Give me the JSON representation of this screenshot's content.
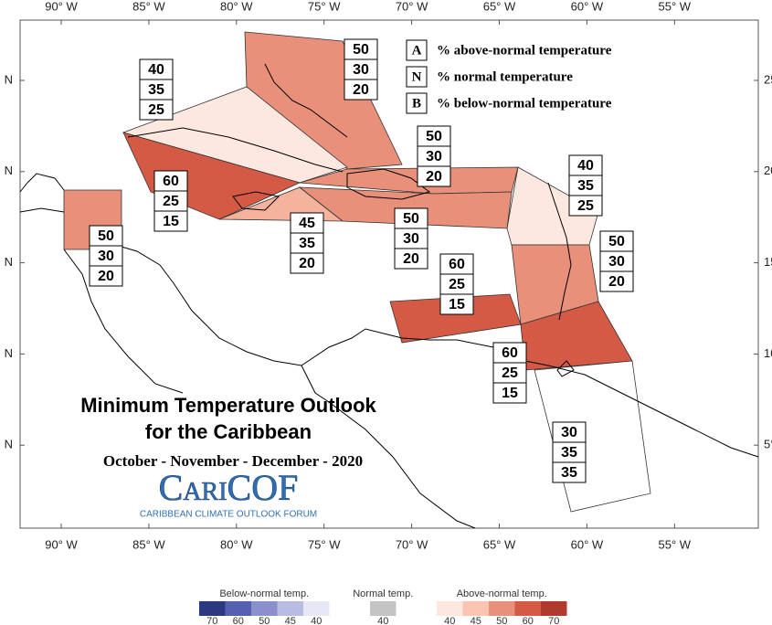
{
  "title": [
    "Minimum Temperature Outlook",
    "for the Caribbean"
  ],
  "subtitle": "October - November - December - 2020",
  "logo": {
    "name": "CariCOF",
    "tagline": "CARIBBEAN CLIMATE OUTLOOK FORUM"
  },
  "key": [
    {
      "letter": "A",
      "text": "% above-normal temperature"
    },
    {
      "letter": "N",
      "text": "% normal temperature"
    },
    {
      "letter": "B",
      "text": "% below-normal temperature"
    }
  ],
  "map": {
    "top_labels": [
      "90° W",
      "85° W",
      "80° W",
      "75° W",
      "70° W",
      "65° W",
      "60° W",
      "55° W"
    ],
    "bottom_labels": [
      "90° W",
      "85° W",
      "80° W",
      "75° W",
      "70° W",
      "65° W",
      "60° W",
      "55° W"
    ],
    "left_labels": [
      "N",
      "N",
      "N",
      "N",
      "N"
    ],
    "right_labels": [
      "25",
      "20",
      "15",
      "10",
      "5°"
    ],
    "regions": [
      {
        "color": "#e9907a",
        "values": [
          50,
          30,
          20
        ]
      },
      {
        "color": "#fde8e0",
        "values": [
          40,
          35,
          25
        ]
      },
      {
        "color": "#d45a45",
        "values": [
          60,
          25,
          15
        ]
      },
      {
        "color": "#f5b39e",
        "values": [
          45,
          35,
          20
        ]
      },
      {
        "color": "#e9907a",
        "values": [
          50,
          30,
          20
        ]
      },
      {
        "color": "#e9907a",
        "values": [
          50,
          30,
          20
        ]
      },
      {
        "color": "#e9907a",
        "values": [
          50,
          30,
          20
        ]
      },
      {
        "color": "#fde8e0",
        "values": [
          40,
          35,
          25
        ]
      },
      {
        "color": "#e9907a",
        "values": [
          50,
          30,
          20
        ]
      },
      {
        "color": "#d45a45",
        "values": [
          60,
          25,
          15
        ]
      },
      {
        "color": "#d45a45",
        "values": [
          60,
          25,
          15
        ]
      },
      {
        "color": "#ffffff",
        "values": [
          30,
          35,
          35
        ]
      }
    ]
  },
  "legend": [
    {
      "label": "Below-normal temp.",
      "colors": [
        "#2b3a80",
        "#5560b0",
        "#8a90cc",
        "#b8bce2",
        "#e6e8f5"
      ],
      "ticks": [
        70,
        60,
        50,
        45,
        40
      ]
    },
    {
      "label": "Normal temp.",
      "colors": [
        "#c4c4c4"
      ],
      "ticks": [
        40
      ]
    },
    {
      "label": "Above-normal temp.",
      "colors": [
        "#fde8e0",
        "#f9c5b0",
        "#e9907a",
        "#d45a45",
        "#b03a2e"
      ],
      "ticks": [
        40,
        45,
        50,
        60,
        70
      ]
    }
  ]
}
